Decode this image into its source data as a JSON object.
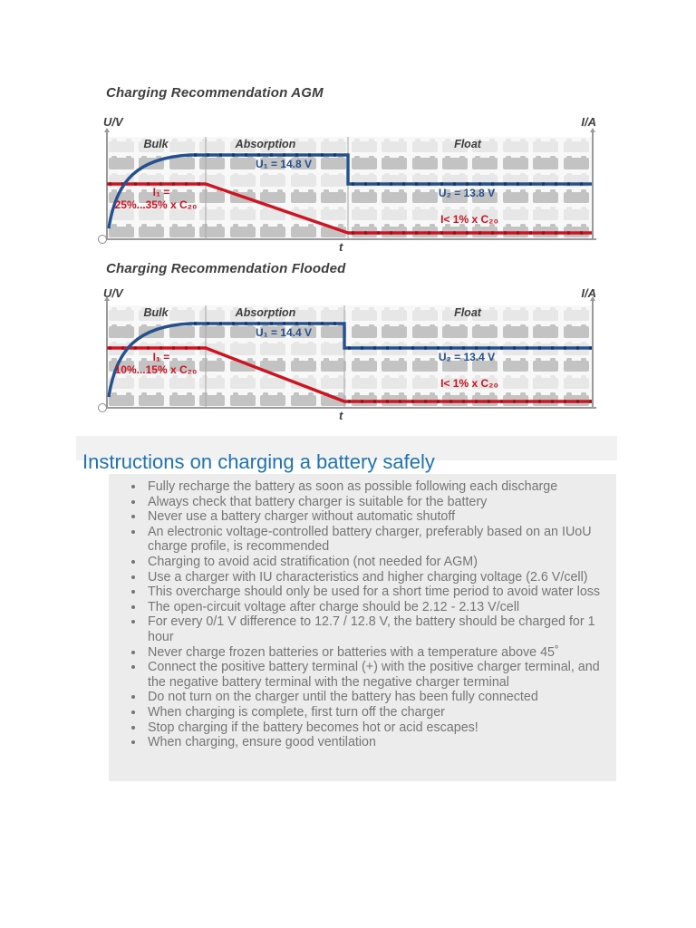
{
  "colors": {
    "voltage_line_blue": "#24508e",
    "current_line_red": "#cf1421",
    "heading_blue": "#1c73b9",
    "chart_label_dark": "#3e3e3e",
    "list_text_gray": "#757575",
    "list_background": "#ececec",
    "heading_background": "#f1f1f1",
    "battery_icon_light": "#e7e7e7",
    "battery_icon_dark": "#c3c3c3"
  },
  "charts": [
    {
      "title": "Charging Recommendation AGM",
      "axis_left": "U/V",
      "axis_right": "I/A",
      "axis_time": "t",
      "phases": {
        "bulk": "Bulk",
        "absorption": "Absorption",
        "float": "Float"
      },
      "labels": {
        "u1": "U₁ = 14.8 V",
        "i1_name": "I₁ =",
        "i1_value": "25%...35% x C₂₀",
        "u2": "U₂ = 13.8 V",
        "float_current": "I< 1% x C₂₀"
      }
    },
    {
      "title": "Charging Recommendation Flooded",
      "axis_left": "U/V",
      "axis_right": "I/A",
      "axis_time": "t",
      "phases": {
        "bulk": "Bulk",
        "absorption": "Absorption",
        "float": "Float"
      },
      "labels": {
        "u1": "U₁ = 14.4 V",
        "i1_name": "I₁ =",
        "i1_value": "10%...15% x C₂₀",
        "u2": "U₂ = 13.4 V",
        "float_current": "I< 1% x C₂₀"
      }
    }
  ],
  "chart_data": [
    {
      "type": "line",
      "title": "Charging Recommendation AGM",
      "xlabel": "t",
      "ylabel_left": "U/V",
      "ylabel_right": "I/A",
      "legend_position": "none",
      "grid": "battery-icon background pattern",
      "phases": [
        {
          "name": "Bulk",
          "voltage": "rises exponentially from 0 to 14.8 V",
          "current": "constant I1 = 25%...35% x C20"
        },
        {
          "name": "Absorption",
          "voltage": "constant U1 = 14.8 V",
          "current": "declines linearly to near zero"
        },
        {
          "name": "Float",
          "voltage": "steps down to constant U2 = 13.8 V",
          "current": "constant I< 1% x C20"
        }
      ],
      "series": [
        {
          "name": "Voltage (blue)",
          "values_V": [
            0,
            14.8,
            14.8,
            13.8,
            13.8
          ]
        },
        {
          "name": "Current (red)",
          "values_relative": [
            "25-35% C20",
            "25-35% C20",
            "ramp down",
            "<1% C20",
            "<1% C20"
          ]
        }
      ]
    },
    {
      "type": "line",
      "title": "Charging Recommendation Flooded",
      "xlabel": "t",
      "ylabel_left": "U/V",
      "ylabel_right": "I/A",
      "legend_position": "none",
      "grid": "battery-icon background pattern",
      "phases": [
        {
          "name": "Bulk",
          "voltage": "rises exponentially from 0 to 14.4 V",
          "current": "constant I1 = 10%...15% x C20"
        },
        {
          "name": "Absorption",
          "voltage": "constant U1 = 14.4 V",
          "current": "declines linearly to near zero"
        },
        {
          "name": "Float",
          "voltage": "steps down to constant U2 = 13.4 V",
          "current": "constant I< 1% x C20"
        }
      ],
      "series": [
        {
          "name": "Voltage (blue)",
          "values_V": [
            0,
            14.4,
            14.4,
            13.4,
            13.4
          ]
        },
        {
          "name": "Current (red)",
          "values_relative": [
            "10-15% C20",
            "10-15% C20",
            "ramp down",
            "<1% C20",
            "<1% C20"
          ]
        }
      ]
    }
  ],
  "section": {
    "heading": "Instructions on charging a battery safely",
    "bullets": [
      "Fully recharge the battery as soon as possible following each discharge",
      "Always check that battery charger is suitable for the battery",
      "Never use a battery charger without automatic shutoff",
      "An electronic voltage-controlled battery charger, preferably based on an IUoU charge profile, is recommended",
      "Charging to avoid acid stratification (not needed for AGM)",
      "Use a charger with IU characteristics and higher charging voltage (2.6 V/cell)",
      "This overcharge should only be used for a short time period to avoid water loss",
      "The open-circuit voltage after charge should be 2.12 - 2.13 V/cell",
      "For every 0/1 V difference to 12.7 / 12.8 V, the battery should be charged for 1 hour",
      "Never charge frozen batteries or batteries with a temperature above 45˚",
      "Connect the positive battery terminal (+) with the positive charger terminal, and the negative battery terminal with the negative charger terminal",
      "Do not turn on the charger until the battery has been fully connected",
      "When charging is complete, first turn off the charger",
      "Stop charging if the battery becomes hot or acid escapes!",
      "When charging, ensure good ventilation"
    ]
  }
}
